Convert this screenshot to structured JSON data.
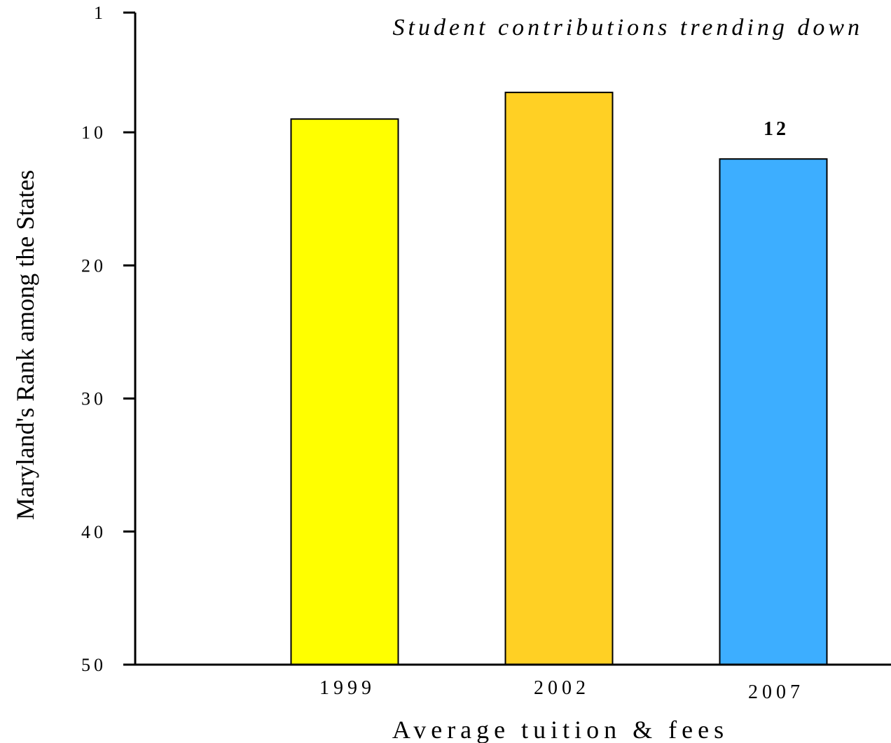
{
  "chart_data": {
    "type": "bar",
    "title": "Student contributions trending down",
    "xlabel": "Average tuition & fees",
    "ylabel": "Maryland's Rank among the States",
    "categories": [
      "1999",
      "2002",
      "2007"
    ],
    "values": [
      9,
      7,
      12
    ],
    "data_labels": [
      "",
      "",
      "12"
    ],
    "colors": [
      "#FFFF00",
      "#FFD024",
      "#3DAEFF"
    ],
    "ylim": [
      1,
      50
    ],
    "y_inverted": true,
    "yticks": [
      1,
      10,
      20,
      30,
      40,
      50
    ],
    "grid": false,
    "legend": "none"
  }
}
